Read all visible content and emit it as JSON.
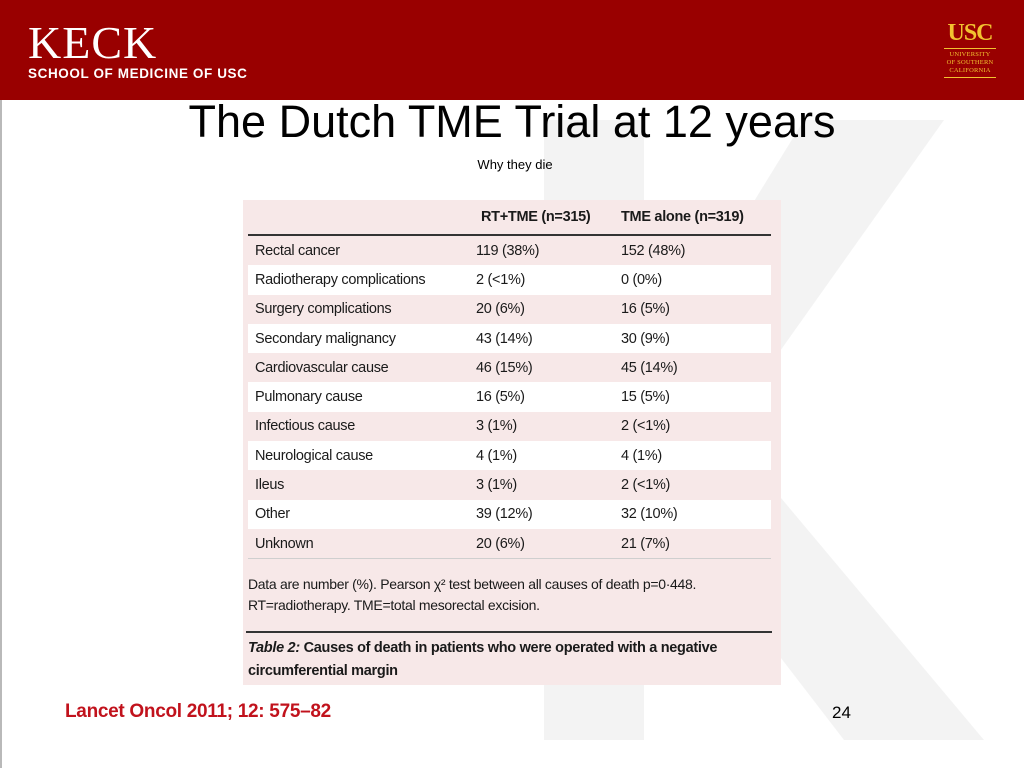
{
  "header": {
    "brand_name": "KECK",
    "brand_subtitle": "SCHOOL OF MEDICINE OF USC",
    "usc_mark": "USC",
    "usc_lines": [
      "UNIVERSITY",
      "OF SOUTHERN",
      "CALIFORNIA"
    ],
    "bar_color": "#990000"
  },
  "slide": {
    "title": "The Dutch TME Trial at 12 years",
    "subtitle": "Why they die",
    "page_number": "24",
    "citation": "Lancet Oncol 2011; 12: 575–82"
  },
  "table": {
    "columns": [
      "",
      "RT+TME (n=315)",
      "TME alone (n=319)"
    ],
    "rows": [
      {
        "cause": "Rectal cancer",
        "rt_tme": "119 (38%)",
        "tme_alone": "152 (48%)"
      },
      {
        "cause": "Radiotherapy complications",
        "rt_tme": "2 (<1%)",
        "tme_alone": "0 (0%)"
      },
      {
        "cause": "Surgery complications",
        "rt_tme": "20 (6%)",
        "tme_alone": "16 (5%)"
      },
      {
        "cause": "Secondary malignancy",
        "rt_tme": "43 (14%)",
        "tme_alone": "30 (9%)"
      },
      {
        "cause": "Cardiovascular cause",
        "rt_tme": "46 (15%)",
        "tme_alone": "45 (14%)"
      },
      {
        "cause": "Pulmonary cause",
        "rt_tme": "16 (5%)",
        "tme_alone": "15 (5%)"
      },
      {
        "cause": "Infectious cause",
        "rt_tme": "3 (1%)",
        "tme_alone": "2 (<1%)"
      },
      {
        "cause": "Neurological cause",
        "rt_tme": "4 (1%)",
        "tme_alone": "4 (1%)"
      },
      {
        "cause": "Ileus",
        "rt_tme": "3 (1%)",
        "tme_alone": "2 (<1%)"
      },
      {
        "cause": "Other",
        "rt_tme": "39 (12%)",
        "tme_alone": "32 (10%)"
      },
      {
        "cause": "Unknown",
        "rt_tme": "20 (6%)",
        "tme_alone": "21 (7%)"
      }
    ],
    "footnote_1": "Data are number (%). Pearson χ² test between all causes of death p=0·448.",
    "footnote_2": "RT=radiotherapy. TME=total mesorectal excision.",
    "caption_label": "Table 2:",
    "caption_text": "Causes of death in patients who were operated with a negative circumferential margin"
  }
}
